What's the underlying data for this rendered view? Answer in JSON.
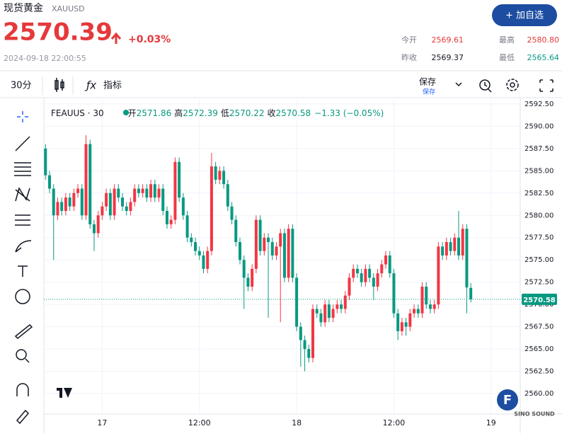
{
  "header": {
    "name": "现货黄金",
    "symbol": "XAUUSD",
    "price": "2570.39",
    "change": "+0.03%",
    "time": "2024-09-18 22:00:55",
    "button": "+ 加自选"
  },
  "stats": [
    {
      "label": "今开",
      "value": "2569.61"
    },
    {
      "label": "最高",
      "value": "2580.80"
    },
    {
      "label": "昨收",
      "value": "2569.37"
    },
    {
      "label": "最低",
      "value": "2565.64"
    }
  ],
  "toolbar": {
    "interval": "30分",
    "indicators": "指标",
    "save": "保存",
    "save_sub": "保存"
  },
  "watermark": {
    "logo": "F",
    "brand": "SINO SOUND"
  },
  "chart_data": {
    "type": "candlestick",
    "title": "FEAUUS · 30",
    "legend": {
      "open": "开",
      "high": "高",
      "low": "低",
      "close": "收",
      "change": "−1.33 (−0.05%)"
    },
    "up_color": "#f23645",
    "down_color": "#089981",
    "grid": true,
    "series": {
      "open": [
        2587.5,
        2584.5,
        2583,
        2580,
        2581.5,
        2580.5,
        2582,
        2581,
        2582.5,
        2583,
        2580,
        2588,
        2579,
        2578,
        2580,
        2581,
        2582.5,
        2580,
        2583,
        2582,
        2581,
        2580.5,
        2581.5,
        2583,
        2582.5,
        2583,
        2582,
        2583.5,
        2582,
        2583,
        2580.5,
        2579,
        2579.5,
        2586,
        2582,
        2580,
        2577.5,
        2577,
        2576,
        2575.5,
        2574,
        2576,
        2585.5,
        2584,
        2585,
        2583.5,
        2581,
        2579.5,
        2577,
        2575,
        2573,
        2572,
        2574,
        2579.5,
        2576,
        2577.5,
        2577,
        2575.5,
        2576.5,
        2578,
        2573,
        2578.5,
        2573,
        2567.5,
        2566,
        2565,
        2564,
        2569.5,
        2569,
        2568,
        2570,
        2568.5,
        2569.5,
        2570,
        2569.5,
        2571,
        2573,
        2574,
        2573.5,
        2572.5,
        2574,
        2573,
        2572,
        2573.5,
        2574.5,
        2575.5,
        2573.5,
        2569,
        2567,
        2568,
        2567.5,
        2569,
        2569.5,
        2569,
        2572,
        2570,
        2569.5,
        2570,
        2576.5,
        2575.5,
        2577,
        2576,
        2577.5,
        2575.5,
        2578.5,
        2571.86
      ],
      "high": [
        2588,
        2585,
        2583.5,
        2582,
        2582,
        2582.5,
        2582.5,
        2583,
        2583.5,
        2583.5,
        2589,
        2588.5,
        2579.5,
        2580.5,
        2581.5,
        2583,
        2583,
        2583.5,
        2583.5,
        2582.5,
        2581.5,
        2582,
        2583.5,
        2583.5,
        2583.5,
        2583.5,
        2584,
        2584,
        2583.5,
        2583.5,
        2581,
        2580,
        2586.5,
        2586.5,
        2582.5,
        2580.5,
        2578,
        2577.5,
        2576.5,
        2576,
        2576.5,
        2587,
        2586,
        2585.5,
        2585.5,
        2584,
        2581.5,
        2580,
        2577.5,
        2575.5,
        2573.5,
        2574.5,
        2580,
        2580,
        2578,
        2578,
        2577.5,
        2577,
        2578.5,
        2578.5,
        2579,
        2579,
        2573.5,
        2568,
        2566.5,
        2565.5,
        2570,
        2570,
        2569.5,
        2570.5,
        2570.5,
        2570,
        2570.5,
        2570.5,
        2571.5,
        2573.5,
        2574.5,
        2574.5,
        2574,
        2574.5,
        2574.5,
        2573.5,
        2574,
        2575,
        2576,
        2576,
        2574,
        2569.5,
        2568.5,
        2568.5,
        2569.5,
        2570,
        2570,
        2572.5,
        2572.5,
        2570.5,
        2570.5,
        2577,
        2577,
        2577.5,
        2577.5,
        2578,
        2580.5,
        2579,
        2579,
        2572.39
      ],
      "low": [
        2584,
        2582.5,
        2575,
        2579.5,
        2580,
        2580,
        2580.5,
        2580.5,
        2582,
        2579.5,
        2579.5,
        2578.5,
        2576,
        2577.5,
        2579.5,
        2580.5,
        2579.5,
        2579.5,
        2581.5,
        2580.5,
        2580,
        2580,
        2581,
        2582,
        2582,
        2581.5,
        2581.5,
        2581.5,
        2581.5,
        2580,
        2578.5,
        2578.5,
        2579,
        2581.5,
        2579.5,
        2577,
        2576.5,
        2575.5,
        2575,
        2573.5,
        2573.5,
        2575.5,
        2583.5,
        2583.5,
        2583,
        2580.5,
        2579,
        2576.5,
        2574.5,
        2569.5,
        2571.5,
        2571.5,
        2573.5,
        2575.5,
        2575.5,
        2568.5,
        2575,
        2575,
        2568,
        2572.5,
        2572.5,
        2572.5,
        2567,
        2563,
        2562.5,
        2563.5,
        2563.5,
        2568.5,
        2567.5,
        2567.5,
        2568,
        2568,
        2569,
        2569,
        2569,
        2570.5,
        2572.5,
        2573,
        2572,
        2572,
        2572.5,
        2570.5,
        2571.5,
        2573,
        2574,
        2573,
        2568.5,
        2566,
        2566.5,
        2566.5,
        2567,
        2568.5,
        2568.5,
        2568.5,
        2569.5,
        2569,
        2569,
        2569.5,
        2575,
        2575,
        2575.5,
        2575.5,
        2575,
        2575,
        2569,
        2570.22
      ],
      "close": [
        2584.5,
        2583,
        2580,
        2581.5,
        2580.5,
        2582,
        2581,
        2582.5,
        2583,
        2580,
        2588,
        2579,
        2578,
        2580,
        2581,
        2582.5,
        2580,
        2583,
        2582,
        2581,
        2580.5,
        2581.5,
        2583,
        2582.5,
        2583,
        2582,
        2583.5,
        2582,
        2583,
        2580.5,
        2579,
        2579.5,
        2586,
        2582,
        2580,
        2577.5,
        2577,
        2576,
        2575.5,
        2574,
        2576,
        2585.5,
        2584,
        2585,
        2583.5,
        2581,
        2579.5,
        2577,
        2575,
        2573,
        2572,
        2574,
        2579.5,
        2576,
        2577.5,
        2577,
        2575.5,
        2576.5,
        2578,
        2573,
        2578.5,
        2573,
        2567.5,
        2566,
        2565,
        2564,
        2569.5,
        2569,
        2568,
        2570,
        2568.5,
        2569.5,
        2570,
        2569.5,
        2571,
        2573,
        2574,
        2573.5,
        2572.5,
        2574,
        2573,
        2572,
        2573.5,
        2574.5,
        2575.5,
        2573.5,
        2569,
        2567,
        2568,
        2567.5,
        2569,
        2569.5,
        2569,
        2572,
        2570,
        2569.5,
        2570,
        2576.5,
        2575.5,
        2577,
        2576,
        2577.5,
        2575.5,
        2578.5,
        2571.91,
        2570.58
      ]
    },
    "ylim": [
      2557.7,
      2593.05
    ],
    "yticks": [
      {
        "value": 2592.5,
        "label": "2592.50"
      },
      {
        "value": 2590,
        "label": "2590.00"
      },
      {
        "value": 2587.5,
        "label": "2587.50"
      },
      {
        "value": 2585,
        "label": "2585.00"
      },
      {
        "value": 2582.5,
        "label": "2582.50"
      },
      {
        "value": 2580,
        "label": "2580.00"
      },
      {
        "value": 2577.5,
        "label": "2577.50"
      },
      {
        "value": 2575,
        "label": "2575.00"
      },
      {
        "value": 2572.5,
        "label": "2572.50"
      },
      {
        "value": 2570,
        "label": "2570.00"
      },
      {
        "value": 2567.5,
        "label": "2567.50"
      },
      {
        "value": 2565,
        "label": "2565.00"
      },
      {
        "value": 2562.5,
        "label": "2562.50"
      },
      {
        "value": 2560,
        "label": "2560.00"
      }
    ],
    "xlim": [
      -0.4,
      117.2
    ],
    "xticks": [
      {
        "value": 14,
        "label": "17"
      },
      {
        "value": 38,
        "label": "12:00"
      },
      {
        "value": 62,
        "label": "18"
      },
      {
        "value": 86,
        "label": "12:00"
      },
      {
        "value": 110,
        "label": "19"
      }
    ]
  }
}
